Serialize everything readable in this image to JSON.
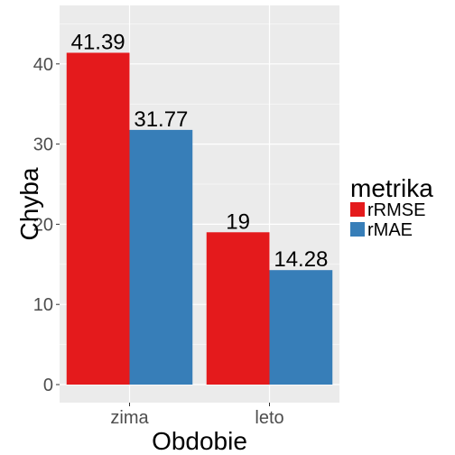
{
  "chart_data": {
    "type": "bar",
    "title": "",
    "xlabel": "Obdobie",
    "ylabel": "Chyba",
    "categories": [
      "zima",
      "leto"
    ],
    "series": [
      {
        "name": "rRMSE",
        "color": "#E41A1C",
        "values": [
          41.39,
          19
        ],
        "labels": [
          "41.39",
          "19"
        ]
      },
      {
        "name": "rMAE",
        "color": "#377EB8",
        "values": [
          31.77,
          14.28
        ],
        "labels": [
          "31.77",
          "14.28"
        ]
      }
    ],
    "ylim": [
      0,
      45
    ],
    "yticks": [
      0,
      10,
      20,
      30,
      40
    ],
    "grid": true,
    "panel_color": "#EBEBEB",
    "legend": {
      "title": "metrika",
      "position": "right"
    }
  }
}
